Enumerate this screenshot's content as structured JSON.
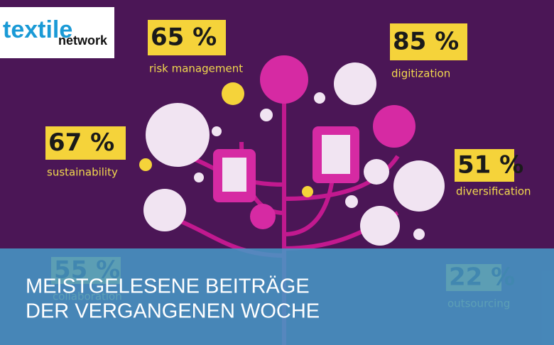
{
  "logo": {
    "part1": "textile",
    "part2": "network"
  },
  "stats": [
    {
      "value": "65 %",
      "label": "risk management"
    },
    {
      "value": "85 %",
      "label": "digitization"
    },
    {
      "value": "67 %",
      "label": "sustainability"
    },
    {
      "value": "51 %",
      "label": "diversification"
    },
    {
      "value": "55 %",
      "label": "collaboration"
    },
    {
      "value": "22 %",
      "label": "outsourcing"
    }
  ],
  "banner": {
    "line1": "MEISTGELESENE BEITRÄGE",
    "line2": "DER VERGANGENEN WOCHE"
  }
}
